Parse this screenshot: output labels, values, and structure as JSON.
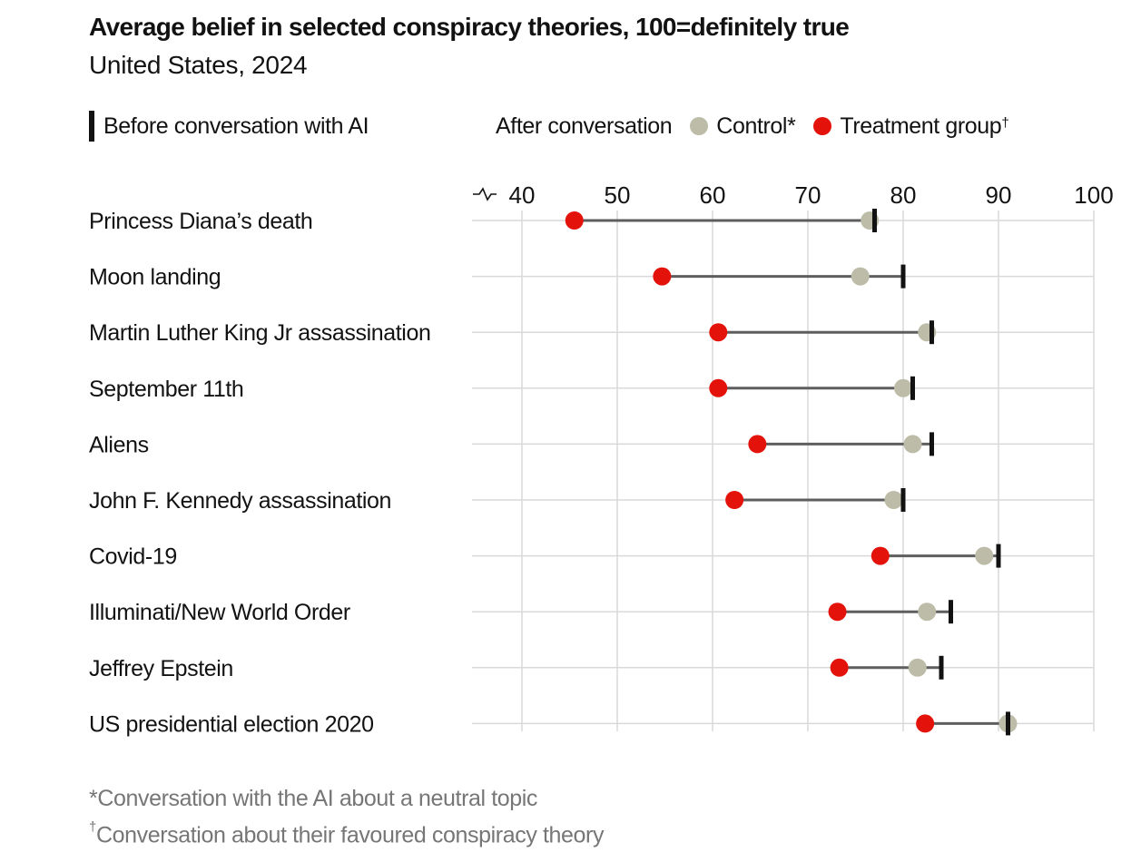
{
  "chart_data": {
    "type": "dot-range",
    "title": "Average belief in selected conspiracy theories, 100=definitely true",
    "subtitle": "United States, 2024",
    "legend": {
      "before_label": "Before conversation with AI",
      "after_label": "After conversation",
      "control_label": "Control*",
      "treatment_label": "Treatment group",
      "treatment_mark": "†"
    },
    "x_ticks": [
      40,
      50,
      60,
      70,
      80,
      90,
      100
    ],
    "xlim": [
      35,
      100
    ],
    "axis_break": true,
    "grid": true,
    "categories": [
      "Princess Diana’s death",
      "Moon landing",
      "Martin Luther King Jr assassination",
      "September 11th",
      "Aliens",
      "John F. Kennedy assassination",
      "Covid-19",
      "Illuminati/New World Order",
      "Jeffrey Epstein",
      "US presidential election 2020"
    ],
    "series": [
      {
        "name": "Before conversation with AI",
        "values": [
          77,
          80,
          83,
          81,
          83,
          80,
          90,
          85,
          84,
          91
        ]
      },
      {
        "name": "Control*",
        "values": [
          76.5,
          75.5,
          82.5,
          80,
          81,
          79,
          88.5,
          82.5,
          81.5,
          91
        ]
      },
      {
        "name": "Treatment group",
        "values": [
          45.5,
          54.7,
          60.6,
          60.6,
          64.7,
          62.3,
          77.6,
          73.1,
          73.3,
          82.3
        ]
      }
    ],
    "colors": {
      "before": "#121212",
      "control": "#bdbca8",
      "treatment": "#e3120b",
      "connector": "#5e5e5e",
      "grid": "#d9d9d9"
    }
  },
  "footnotes": {
    "control_mark": "*",
    "control_note": "Conversation with the AI about a neutral topic",
    "treatment_mark": "†",
    "treatment_note": "Conversation about their favoured conspiracy theory"
  }
}
